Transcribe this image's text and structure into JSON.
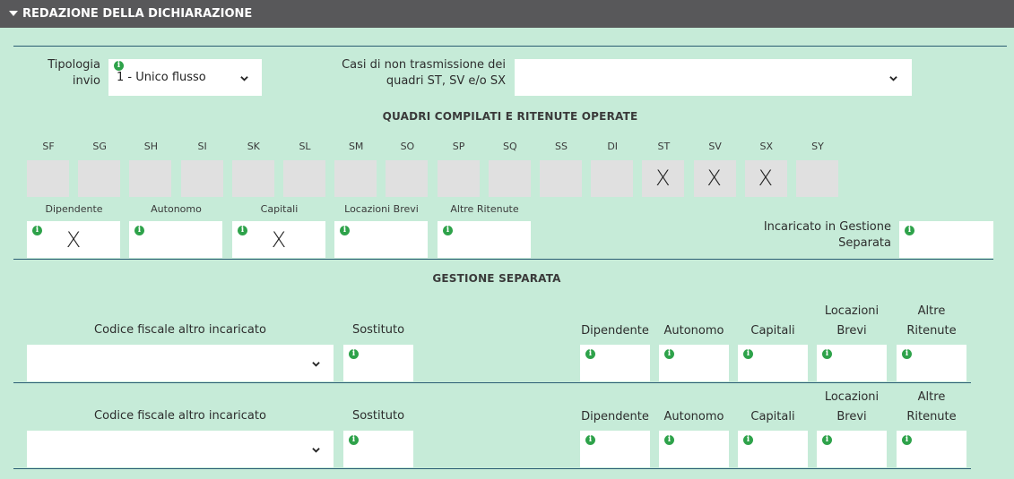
{
  "header": {
    "title": "REDAZIONE DELLA DICHIARAZIONE"
  },
  "tipologia": {
    "label": "Tipologia invio",
    "value": "1 - Unico flusso"
  },
  "casi": {
    "label": "Casi di non trasmissione dei quadri ST, SV e/o SX",
    "value": ""
  },
  "quadri": {
    "title": "QUADRI COMPILATI E RITENUTE OPERATE",
    "codes": [
      {
        "code": "SF",
        "mark": ""
      },
      {
        "code": "SG",
        "mark": ""
      },
      {
        "code": "SH",
        "mark": ""
      },
      {
        "code": "SI",
        "mark": ""
      },
      {
        "code": "SK",
        "mark": ""
      },
      {
        "code": "SL",
        "mark": ""
      },
      {
        "code": "SM",
        "mark": ""
      },
      {
        "code": "SO",
        "mark": ""
      },
      {
        "code": "SP",
        "mark": ""
      },
      {
        "code": "SQ",
        "mark": ""
      },
      {
        "code": "SS",
        "mark": ""
      },
      {
        "code": "DI",
        "mark": ""
      },
      {
        "code": "ST",
        "mark": "X"
      },
      {
        "code": "SV",
        "mark": "X"
      },
      {
        "code": "SX",
        "mark": "X"
      },
      {
        "code": "SY",
        "mark": ""
      }
    ],
    "ritenute": [
      {
        "label": "Dipendente",
        "mark": "X"
      },
      {
        "label": "Autonomo",
        "mark": ""
      },
      {
        "label": "Capitali",
        "mark": "X"
      },
      {
        "label": "Locazioni Brevi",
        "mark": ""
      },
      {
        "label": "Altre Ritenute",
        "mark": ""
      }
    ],
    "incaricato": {
      "label": "Incaricato in Gestione Separata",
      "mark": ""
    }
  },
  "gestione": {
    "title": "GESTIONE SEPARATA",
    "rows": [
      {
        "cf_label": "Codice fiscale altro incaricato",
        "cf_value": "",
        "sostituto_label": "Sostituto",
        "cols": [
          "Dipendente",
          "Autonomo",
          "Capitali",
          "Locazioni Brevi",
          "Altre Ritenute"
        ]
      },
      {
        "cf_label": "Codice fiscale altro incaricato",
        "cf_value": "",
        "sostituto_label": "Sostituto",
        "cols": [
          "Dipendente",
          "Autonomo",
          "Capitali",
          "Locazioni Brevi",
          "Altre Ritenute"
        ]
      }
    ]
  },
  "icons": {
    "info": "info-icon",
    "dropdown": "chevron-down-icon",
    "collapse": "triangle-down-icon"
  },
  "colors": {
    "background": "#c6ebd8",
    "header": "#58585a",
    "info": "#2ea24a",
    "divider": "#2a5d73"
  }
}
